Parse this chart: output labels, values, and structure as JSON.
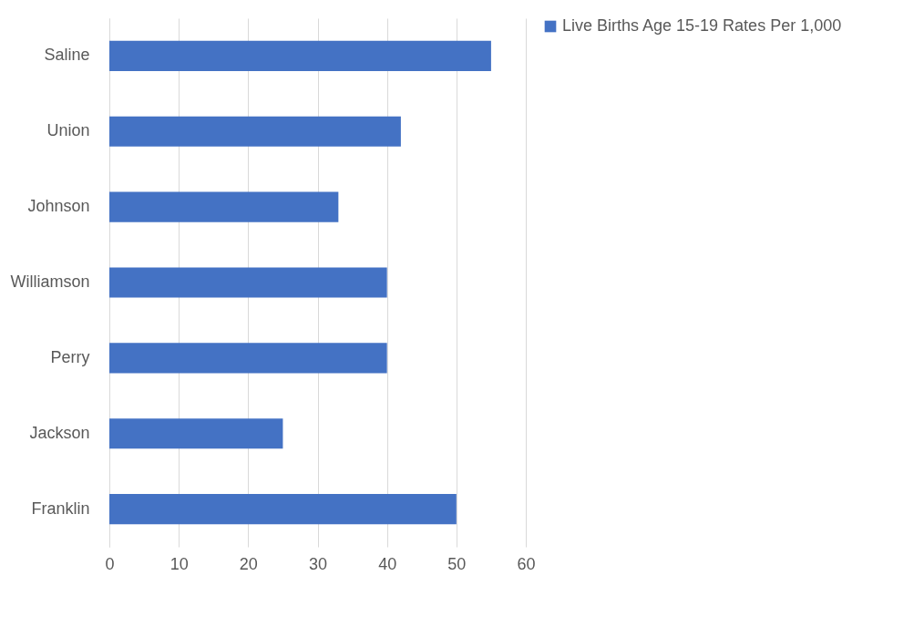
{
  "chart_data": {
    "type": "bar",
    "orientation": "horizontal",
    "categories": [
      "Saline",
      "Union",
      "Johnson",
      "Williamson",
      "Perry",
      "Jackson",
      "Franklin"
    ],
    "series": [
      {
        "name": "Live Births Age 15-19 Rates Per 1,000",
        "color": "#4472c4",
        "values": [
          55,
          42,
          33,
          40,
          40,
          25,
          50
        ]
      }
    ],
    "xlim": [
      0,
      60
    ],
    "xticks": [
      0,
      10,
      20,
      30,
      40,
      50,
      60
    ],
    "grid": "x",
    "legend": "right"
  }
}
